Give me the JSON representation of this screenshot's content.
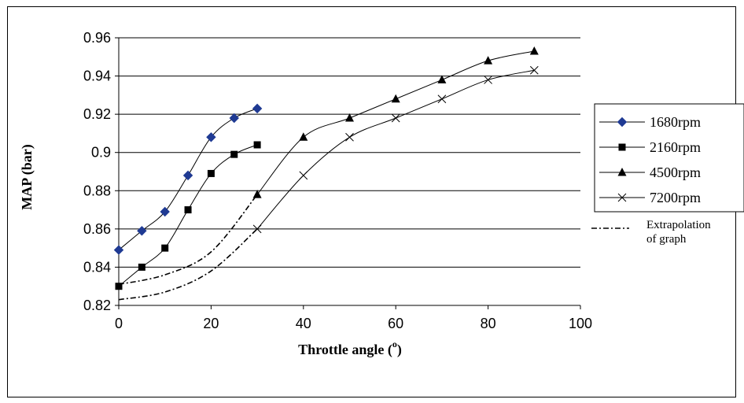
{
  "chart_data": {
    "type": "line",
    "xlabel": "Throttle angle (",
    "xlabel_sup": "o",
    "xlabel_close": ")",
    "ylabel": "MAP (bar)",
    "xlim": [
      0,
      100
    ],
    "ylim": [
      0.82,
      0.96
    ],
    "xticks": [
      "0",
      "20",
      "40",
      "60",
      "80",
      "100"
    ],
    "yticks": [
      "0.82",
      "0.84",
      "0.86",
      "0.88",
      "0.9",
      "0.92",
      "0.94",
      "0.96"
    ],
    "grid": "horizontal",
    "legend_position": "right",
    "series": [
      {
        "name": "1680rpm",
        "marker": "diamond",
        "color": "#1f3a93",
        "x": [
          0,
          5,
          10,
          15,
          20,
          25,
          30
        ],
        "y": [
          0.849,
          0.859,
          0.869,
          0.888,
          0.908,
          0.918,
          0.923
        ]
      },
      {
        "name": "2160rpm",
        "marker": "square",
        "color": "#000000",
        "x": [
          0,
          5,
          10,
          15,
          20,
          25,
          30
        ],
        "y": [
          0.83,
          0.84,
          0.85,
          0.87,
          0.889,
          0.899,
          0.904
        ]
      },
      {
        "name": "4500rpm",
        "marker": "triangle",
        "color": "#000000",
        "x": [
          30,
          40,
          50,
          60,
          70,
          80,
          90
        ],
        "y": [
          0.878,
          0.908,
          0.918,
          0.928,
          0.938,
          0.948,
          0.953
        ]
      },
      {
        "name": "7200rpm",
        "marker": "x",
        "color": "#000000",
        "x": [
          30,
          40,
          50,
          60,
          70,
          80,
          90
        ],
        "y": [
          0.86,
          0.888,
          0.908,
          0.918,
          0.928,
          0.938,
          0.943
        ]
      }
    ],
    "extrapolation": {
      "label_line1": "Extrapolation",
      "label_line2": "of graph",
      "curves": [
        {
          "x": [
            0,
            10,
            20,
            30
          ],
          "y": [
            0.831,
            0.836,
            0.848,
            0.878
          ]
        },
        {
          "x": [
            0,
            10,
            20,
            30
          ],
          "y": [
            0.823,
            0.827,
            0.838,
            0.86
          ]
        }
      ]
    }
  }
}
